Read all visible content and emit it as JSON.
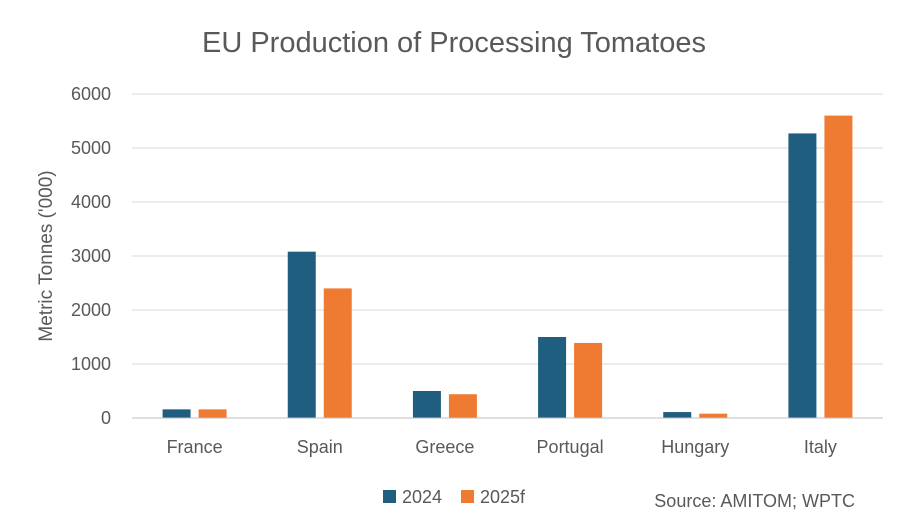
{
  "chart_data": {
    "type": "bar",
    "title": "EU Production of Processing Tomatoes",
    "ylabel": "Metric Tonnes ('000)",
    "xlabel": "",
    "categories": [
      "France",
      "Spain",
      "Greece",
      "Portugal",
      "Hungary",
      "Italy"
    ],
    "series": [
      {
        "name": "2024",
        "color": "#1f5e7f",
        "values": [
          160,
          3080,
          500,
          1500,
          110,
          5270
        ]
      },
      {
        "name": "2025f",
        "color": "#ef7b32",
        "values": [
          160,
          2400,
          440,
          1390,
          80,
          5600
        ]
      }
    ],
    "ylim": [
      0,
      6000
    ],
    "yticks": [
      0,
      1000,
      2000,
      3000,
      4000,
      5000,
      6000
    ],
    "grid": true,
    "legend": "bottom-center",
    "source": "Source: AMITOM; WPTC"
  }
}
